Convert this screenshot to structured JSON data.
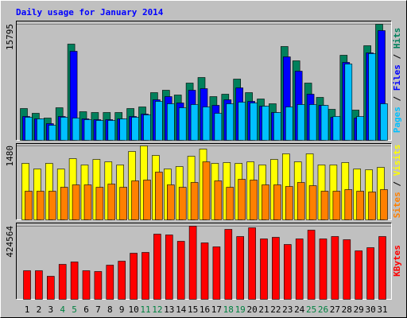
{
  "chart_data": [
    {
      "type": "bar",
      "title": "Daily usage for January 2014",
      "legend_separator": " / ",
      "ylim": [
        0,
        15795
      ],
      "yticks": [
        15795
      ],
      "series": [
        {
          "name": "Hits",
          "color": "#00805c",
          "values": [
            4328,
            3679,
            3030,
            4436,
            13092,
            3895,
            3787,
            3787,
            3787,
            4328,
            4544,
            6492,
            6817,
            6167,
            7790,
            8548,
            5951,
            6276,
            8331,
            6492,
            5626,
            4977,
            12768,
            10820,
            7790,
            5843,
            4220,
            11577,
            4112,
            12876,
            15795
          ]
        },
        {
          "name": "Files",
          "color": "#0000ff",
          "values": [
            3246,
            2921,
            2272,
            3246,
            12118,
            2921,
            2813,
            2813,
            2921,
            3246,
            3571,
            5518,
            5951,
            5085,
            6817,
            7033,
            4761,
            5518,
            7141,
            5302,
            4653,
            3787,
            11361,
            9413,
            6276,
            4761,
            3138,
            10604,
            3030,
            11902,
            14932
          ]
        },
        {
          "name": "Pages",
          "color": "#00c0ff",
          "values": [
            3138,
            2921,
            2056,
            3138,
            3030,
            2813,
            2705,
            2705,
            2921,
            3138,
            3462,
            5300,
            4977,
            4436,
            4869,
            4544,
            3679,
            4977,
            5194,
            5085,
            4653,
            3787,
            4544,
            4869,
            4869,
            4761,
            3246,
            10387,
            3246,
            11794,
            4977
          ]
        }
      ]
    },
    {
      "type": "bar",
      "legend_separator": " / ",
      "ylim": [
        0,
        1480
      ],
      "yticks": [
        1480
      ],
      "series": [
        {
          "name": "Visits",
          "color": "#ffff00",
          "values": [
            1130,
            1018,
            1130,
            1018,
            1225,
            1098,
            1209,
            1161,
            1098,
            1368,
            1480,
            1289,
            1018,
            1066,
            1273,
            1416,
            1130,
            1146,
            1130,
            1161,
            1098,
            1209,
            1321,
            1161,
            1321,
            1098,
            1098,
            1146,
            1018,
            1002,
            1050
          ]
        },
        {
          "name": "Sites",
          "color": "#ff8000",
          "values": [
            573,
            573,
            573,
            652,
            700,
            700,
            652,
            716,
            652,
            780,
            796,
            955,
            700,
            652,
            748,
            1161,
            780,
            652,
            811,
            796,
            700,
            700,
            668,
            748,
            684,
            573,
            573,
            605,
            573,
            557,
            605
          ]
        }
      ]
    },
    {
      "type": "bar",
      "ylim": [
        0,
        424564
      ],
      "yticks": [
        424564
      ],
      "categories": [
        "1",
        "2",
        "3",
        "4",
        "5",
        "6",
        "7",
        "8",
        "9",
        "10",
        "11",
        "12",
        "13",
        "14",
        "15",
        "16",
        "17",
        "18",
        "19",
        "20",
        "21",
        "22",
        "23",
        "24",
        "25",
        "26",
        "27",
        "28",
        "29",
        "30",
        "31"
      ],
      "category_colors": [
        "#000000",
        "#000000",
        "#000000",
        "#008040",
        "#008040",
        "#000000",
        "#000000",
        "#000000",
        "#000000",
        "#000000",
        "#008040",
        "#008040",
        "#000000",
        "#000000",
        "#000000",
        "#000000",
        "#000000",
        "#008040",
        "#008040",
        "#000000",
        "#000000",
        "#000000",
        "#000000",
        "#000000",
        "#008040",
        "#008040",
        "#000000",
        "#000000",
        "#000000",
        "#000000",
        "#000000"
      ],
      "series": [
        {
          "name": "KBytes",
          "color": "#ff0000",
          "values": [
            166140,
            166140,
            133835,
            203060,
            216905,
            166140,
            161525,
            198445,
            221520,
            267670,
            272285,
            378430,
            373815,
            336895,
            424564,
            327665,
            304590,
            406120,
            364585,
            415350,
            350740,
            359970,
            318435,
            350740,
            401505,
            350740,
            364585,
            346125,
            281515,
            299975,
            364585
          ]
        }
      ]
    }
  ]
}
